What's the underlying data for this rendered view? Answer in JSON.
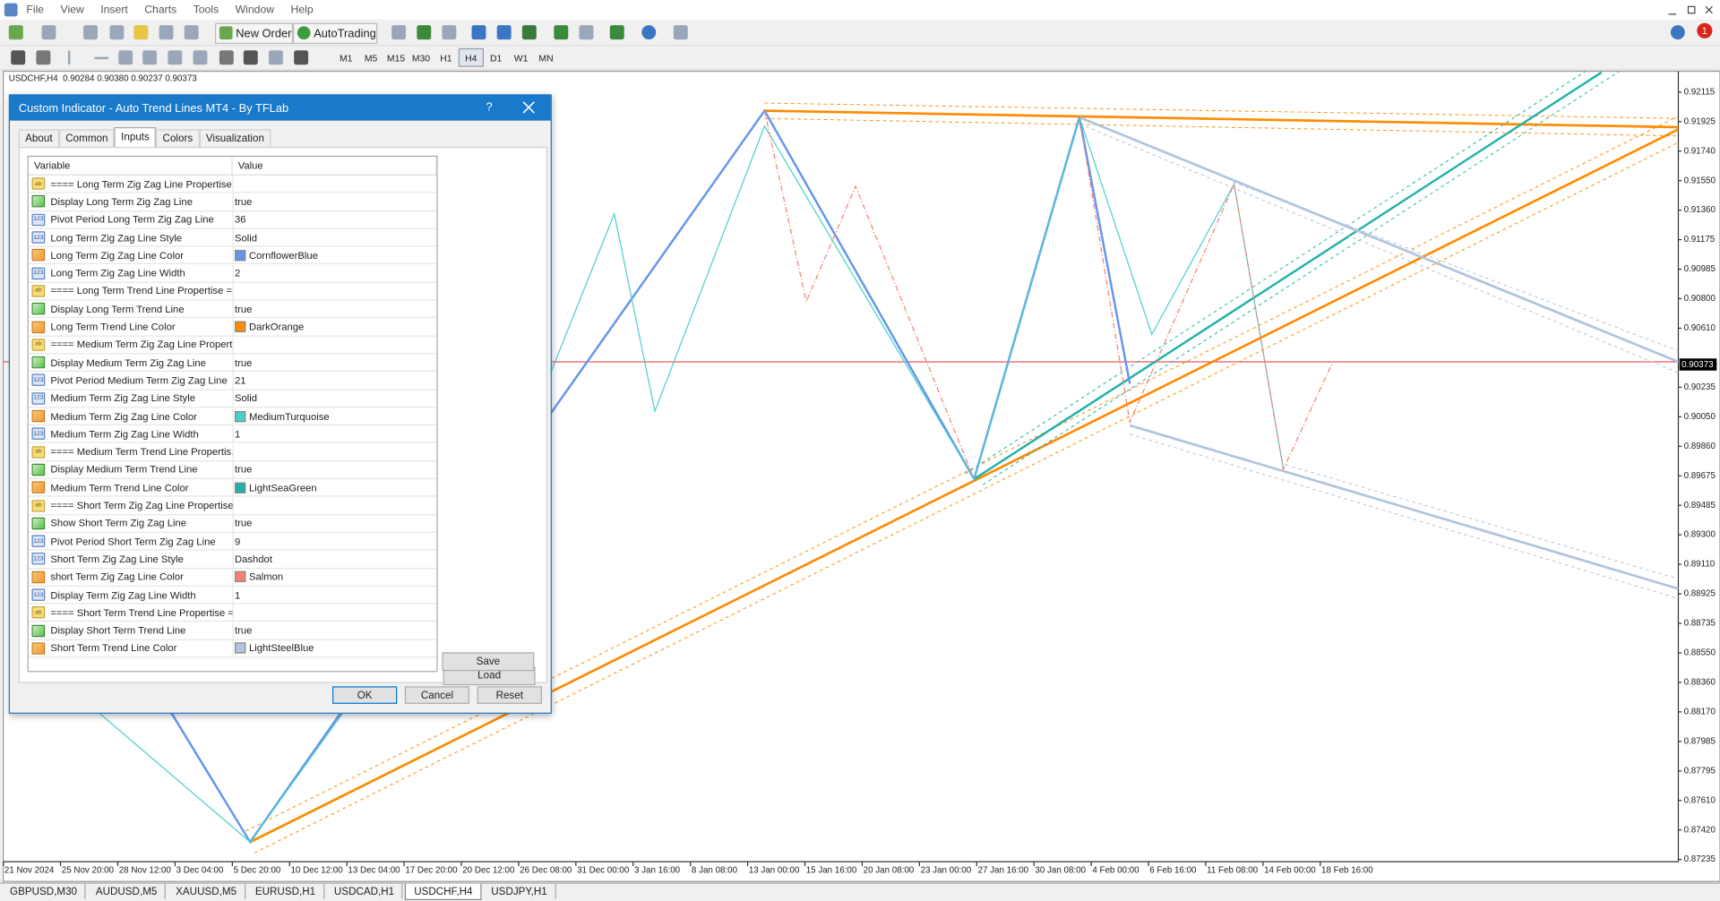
{
  "menu": [
    "File",
    "View",
    "Insert",
    "Charts",
    "Tools",
    "Window",
    "Help"
  ],
  "notifications": "1",
  "toolbar": {
    "new_order": "New Order",
    "autotrading": "AutoTrading",
    "timeframes": [
      "M1",
      "M5",
      "M15",
      "M30",
      "H1",
      "H4",
      "D1",
      "W1",
      "MN"
    ],
    "active_timeframe_index": 5
  },
  "chart": {
    "header": "USDCHF,H4  0.90284 0.90380 0.90237 0.90373",
    "price_labels": [
      "0.92115",
      "0.91925",
      "0.91740",
      "0.91550",
      "0.91360",
      "0.91175",
      "0.90985",
      "0.90800",
      "0.90610",
      "0.90235",
      "0.90050",
      "0.89860",
      "0.89675",
      "0.89485",
      "0.89300",
      "0.89110",
      "0.88925",
      "0.88735",
      "0.88550",
      "0.88360",
      "0.88170",
      "0.87985",
      "0.87795",
      "0.87610",
      "0.87420",
      "0.87235"
    ],
    "current_price": "0.90373",
    "time_labels": [
      "21 Nov 2024",
      "25 Nov 20:00",
      "28 Nov 12:00",
      "3 Dec 04:00",
      "5 Dec 20:00",
      "10 Dec 12:00",
      "13 Dec 04:00",
      "17 Dec 20:00",
      "20 Dec 12:00",
      "26 Dec 08:00",
      "31 Dec 00:00",
      "3 Jan 16:00",
      "8 Jan 08:00",
      "13 Jan 00:00",
      "15 Jan 16:00",
      "20 Jan 08:00",
      "23 Jan 00:00",
      "27 Jan 16:00",
      "30 Jan 08:00",
      "4 Feb 00:00",
      "6 Feb 16:00",
      "11 Feb 08:00",
      "14 Feb 00:00",
      "18 Feb 16:00"
    ]
  },
  "dialog": {
    "title": "Custom Indicator - Auto Trend Lines MT4 - By TFLab",
    "help": "?",
    "tabs": [
      "About",
      "Common",
      "Inputs",
      "Colors",
      "Visualization"
    ],
    "active_tab_index": 2,
    "table": {
      "header": [
        "Variable",
        "Value"
      ],
      "rows": [
        {
          "icon": "ab",
          "variable": "==== Long Term Zig Zag Line Propertise..."
        },
        {
          "variable": "Display Long Term Zig Zag Line",
          "value": "true"
        },
        {
          "icon": "123",
          "variable": "Pivot Period Long Term Zig Zag Line",
          "value": "36"
        },
        {
          "icon": "123",
          "variable": "Long Term Zig Zag Line Style",
          "value": "Solid"
        },
        {
          "variable": "Long Term Zig Zag Line Color",
          "value": "CornflowerBlue",
          "swatch": "#6495ed"
        },
        {
          "icon": "123",
          "variable": "Long Term Zig Zag Line Width",
          "value": "2"
        },
        {
          "icon": "ab",
          "variable": "==== Long Term Trend Line Propertise =..."
        },
        {
          "variable": "Display Long Term Trend Line",
          "value": "true"
        },
        {
          "variable": "Long Term Trend Line Color",
          "value": "DarkOrange",
          "swatch": "#ff8c00"
        },
        {
          "icon": "ab",
          "variable": "==== Medium Term Zig Zag Line Propert..."
        },
        {
          "variable": "Display Medium Term Zig Zag Line",
          "value": "true"
        },
        {
          "icon": "123",
          "variable": "Pivot Period Medium Term Zig Zag Line",
          "value": "21"
        },
        {
          "icon": "123",
          "variable": "Medium Term Zig Zag Line Style",
          "value": "Solid"
        },
        {
          "variable": "Medium Term Zig Zag Line Color",
          "value": "MediumTurquoise",
          "swatch": "#48d1cc"
        },
        {
          "icon": "123",
          "variable": "Medium Term Zig Zag Line Width",
          "value": "1"
        },
        {
          "icon": "ab",
          "variable": "==== Medium Term Trend Line Propertis..."
        },
        {
          "variable": "Display Medium Term Trend Line",
          "value": "true"
        },
        {
          "variable": "Medium Term Trend Line Color",
          "value": "LightSeaGreen",
          "swatch": "#20b2aa"
        },
        {
          "icon": "ab",
          "variable": "==== Short Term Zig Zag Line Propertise..."
        },
        {
          "variable": "Show Short Term Zig Zag Line",
          "value": "true"
        },
        {
          "icon": "123",
          "variable": "Pivot Period Short Term Zig Zag Line",
          "value": "9"
        },
        {
          "icon": "123",
          "variable": "Short Term Zig Zag Line Style",
          "value": "Dashdot"
        },
        {
          "variable": "short Term Zig Zag Line Color",
          "value": "Salmon",
          "swatch": "#fa8072"
        },
        {
          "icon": "123",
          "variable": "Display Term Zig Zag Line Width",
          "value": "1"
        },
        {
          "icon": "ab",
          "variable": "==== Short Term Trend Line Propertise =..."
        },
        {
          "variable": "Display Short Term Trend Line",
          "value": "true"
        },
        {
          "variable": "Short Term Trend Line Color",
          "value": "LightSteelBlue",
          "swatch": "#b0c4de"
        }
      ]
    },
    "buttons": {
      "load": "Load",
      "save": "Save",
      "ok": "OK",
      "cancel": "Cancel",
      "reset": "Reset"
    }
  },
  "symbol_tabs": [
    "GBPUSD,M30",
    "AUDUSD,M5",
    "XAUUSD,M5",
    "EURUSD,H1",
    "USDCAD,H1",
    "USDCHF,H4",
    "USDJPY,H1"
  ],
  "active_symbol_tab_index": 5
}
